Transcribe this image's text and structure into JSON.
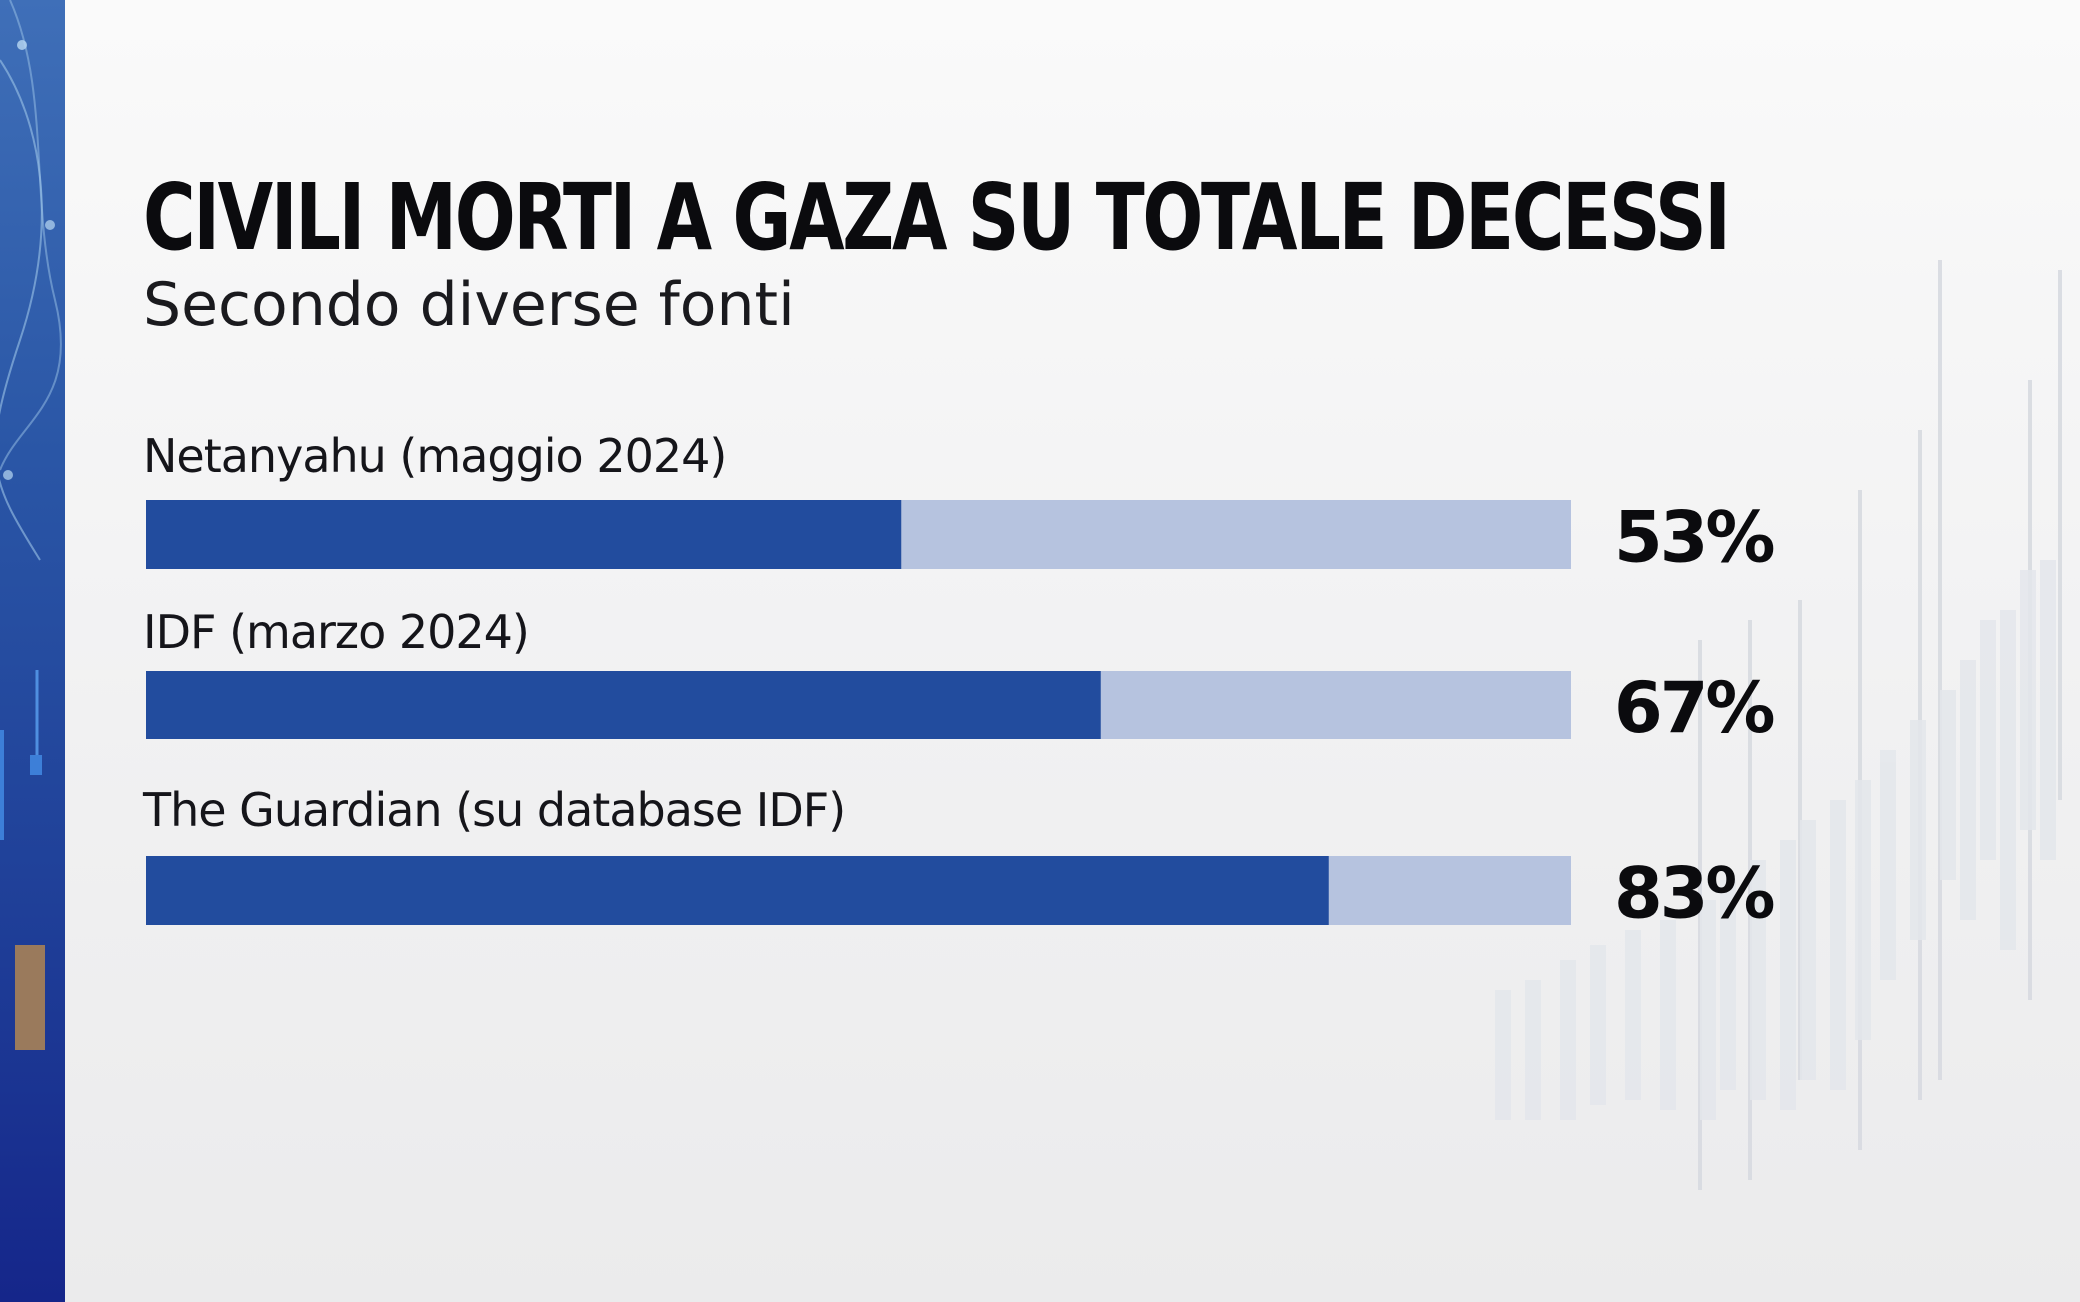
{
  "colors": {
    "bar_fill": "#224c9e",
    "bar_track": "#b6c3df",
    "side_strip": "#2a56a6",
    "text": "#0b0b0e"
  },
  "chart_data": {
    "type": "bar",
    "orientation": "horizontal",
    "title": "CIVILI MORTI A GAZA SU TOTALE DECESSI",
    "subtitle": "Secondo diverse fonti",
    "categories": [
      "Netanyahu (maggio 2024)",
      "IDF (marzo 2024)",
      "The Guardian (su database IDF)"
    ],
    "values": [
      53,
      67,
      83
    ],
    "value_labels": [
      "53%",
      "67%",
      "83%"
    ],
    "unit": "%",
    "xlim": [
      0,
      100
    ],
    "grid": false,
    "legend": "none"
  }
}
